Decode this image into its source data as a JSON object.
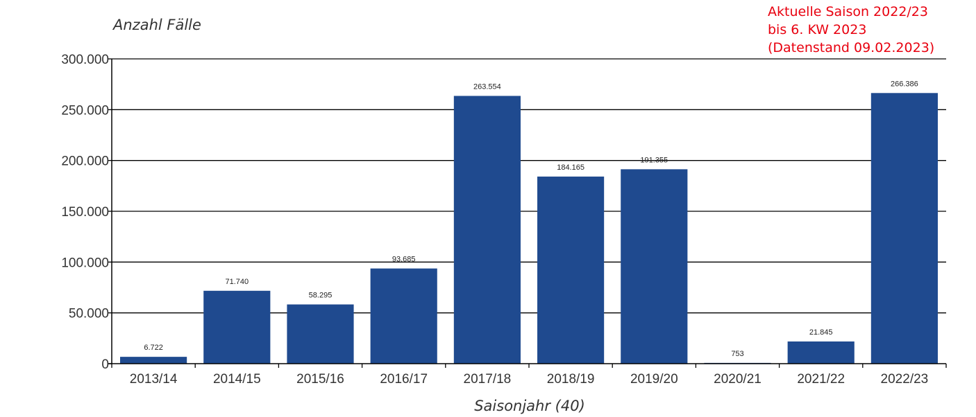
{
  "chart_data": {
    "type": "bar",
    "ylabel": "Anzahl Fälle",
    "xlabel": "Saisonjahr (40)",
    "categories": [
      "2013/14",
      "2014/15",
      "2015/16",
      "2016/17",
      "2017/18",
      "2018/19",
      "2019/20",
      "2020/21",
      "2021/22",
      "2022/23"
    ],
    "values": [
      6722,
      71740,
      58295,
      93685,
      263554,
      184165,
      191355,
      753,
      21845,
      266386
    ],
    "value_labels": [
      "6.722",
      "71.740",
      "58.295",
      "93.685",
      "263.554",
      "184.165",
      "191.355",
      "753",
      "21.845",
      "266.386"
    ],
    "ylim": [
      0,
      300000
    ],
    "yticks": [
      0,
      50000,
      100000,
      150000,
      200000,
      250000,
      300000
    ],
    "ytick_labels": [
      "0",
      "50.000",
      "100.000",
      "150.000",
      "200.000",
      "250.000",
      "300.000"
    ],
    "grid": true,
    "bar_color": "#1f4a8f"
  },
  "annotation": {
    "lines": [
      "Aktuelle Saison 2022/23",
      "bis 6. KW 2023",
      "(Datenstand 09.02.2023)"
    ],
    "color": "#e8000f"
  }
}
